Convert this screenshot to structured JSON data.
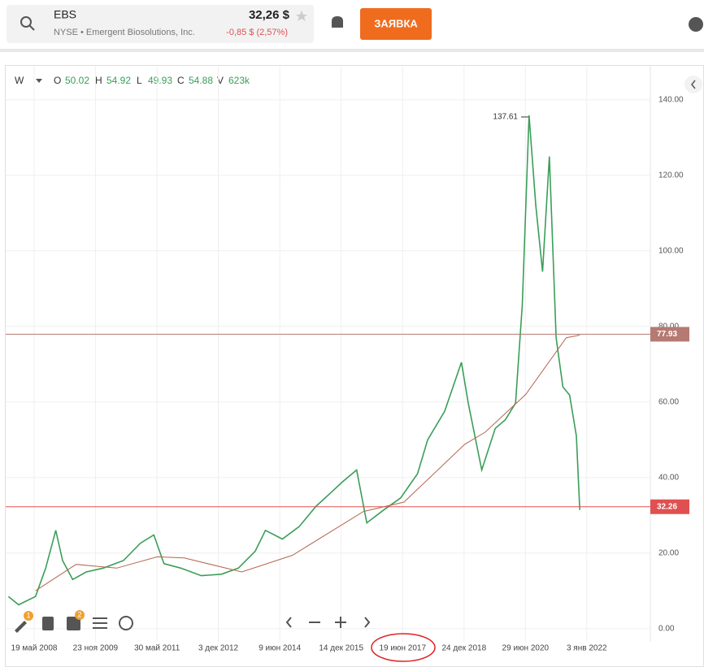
{
  "header": {
    "ticker": "EBS",
    "price": "32,26 $",
    "subtitle": "NYSE • Emergent Biosolutions, Inc.",
    "change": "-0,85 $ (2,57%)",
    "order_button": "ЗАЯВКА"
  },
  "legend": {
    "interval": "W",
    "open_label": "O",
    "open": "50.02",
    "high_label": "H",
    "high": "54.92",
    "low_label": "L",
    "low": "49.93",
    "close_label": "C",
    "close": "54.88",
    "volume_label": "V",
    "volume": "623k"
  },
  "toolbar_badges": [
    "1",
    "2"
  ],
  "chart_data": {
    "type": "line",
    "series": [
      {
        "color": "#3a9e58",
        "x": [
          "2007-10",
          "2008-01",
          "2008-06",
          "2008-09",
          "2008-12",
          "2009-02",
          "2009-05",
          "2009-09",
          "2010-02",
          "2010-08",
          "2011-01",
          "2011-05",
          "2011-08",
          "2012-01",
          "2012-07",
          "2013-01",
          "2013-06",
          "2013-11",
          "2014-02",
          "2014-07",
          "2014-12",
          "2015-05",
          "2015-09",
          "2016-01",
          "2016-05",
          "2016-08",
          "2017-01",
          "2017-06",
          "2017-11",
          "2018-02",
          "2018-07",
          "2018-12",
          "2019-02",
          "2019-06",
          "2019-10",
          "2020-01",
          "2020-04",
          "2020-06",
          "2020-08",
          "2020-10",
          "2020-12",
          "2021-02",
          "2021-04",
          "2021-06",
          "2021-08",
          "2021-10",
          "2021-11"
        ],
        "values": [
          8.5,
          6.3,
          8.5,
          16,
          26,
          18,
          13,
          15,
          16,
          18,
          22.6,
          24.8,
          17.2,
          16,
          14,
          14.4,
          16,
          20.5,
          26,
          23.7,
          27,
          32.4,
          35.7,
          39,
          42,
          28,
          31.4,
          34.6,
          41,
          50,
          57.5,
          70.5,
          59.7,
          42,
          53,
          55.3,
          59.7,
          85.8,
          135.9,
          112,
          94.5,
          125,
          77,
          64,
          61.8,
          51,
          31.4
        ]
      },
      {
        "color": "#b5654f",
        "x": [
          "2008-06",
          "2009-06",
          "2010-06",
          "2011-06",
          "2012-02",
          "2013-07",
          "2014-10",
          "2016-07",
          "2017-07",
          "2019-01",
          "2019-07",
          "2020-07",
          "2021-07",
          "2021-11"
        ],
        "values": [
          10,
          17,
          16,
          19,
          18.7,
          15,
          19.4,
          31,
          33.5,
          48.8,
          52,
          62,
          77,
          77.7
        ]
      }
    ],
    "hlines": [
      {
        "value": 77.93,
        "color": "#b57a72"
      },
      {
        "value": 32.26,
        "color": "#e05050"
      }
    ],
    "peak": 137.61,
    "ylim": [
      -3.5,
      149
    ],
    "yticks": [
      {
        "value": 0,
        "label": "0.00"
      },
      {
        "value": 20,
        "label": "20.00"
      },
      {
        "value": 40,
        "label": "40.00"
      },
      {
        "value": 60,
        "label": "60.00"
      },
      {
        "value": 80,
        "label": "80.00"
      },
      {
        "value": 100,
        "label": "100.00"
      },
      {
        "value": 120,
        "label": "120.00"
      },
      {
        "value": 140,
        "label": "140.00"
      }
    ],
    "xticks": [
      {
        "value": "2008-05-19",
        "label": "19 май 2008"
      },
      {
        "value": "2009-11-23",
        "label": "23 ноя 2009"
      },
      {
        "value": "2011-05-30",
        "label": "30 май 2011"
      },
      {
        "value": "2012-12-03",
        "label": "3 дек 2012"
      },
      {
        "value": "2014-06-09",
        "label": "9 июн 2014"
      },
      {
        "value": "2015-12-14",
        "label": "14 дек 2015"
      },
      {
        "value": "2017-06-19",
        "label": "19 июн 2017"
      },
      {
        "value": "2018-12-24",
        "label": "24 дек 2018"
      },
      {
        "value": "2020-06-29",
        "label": "29 июн 2020"
      },
      {
        "value": "2022-01-03",
        "label": "3 янв 2022"
      }
    ],
    "grid": true
  }
}
